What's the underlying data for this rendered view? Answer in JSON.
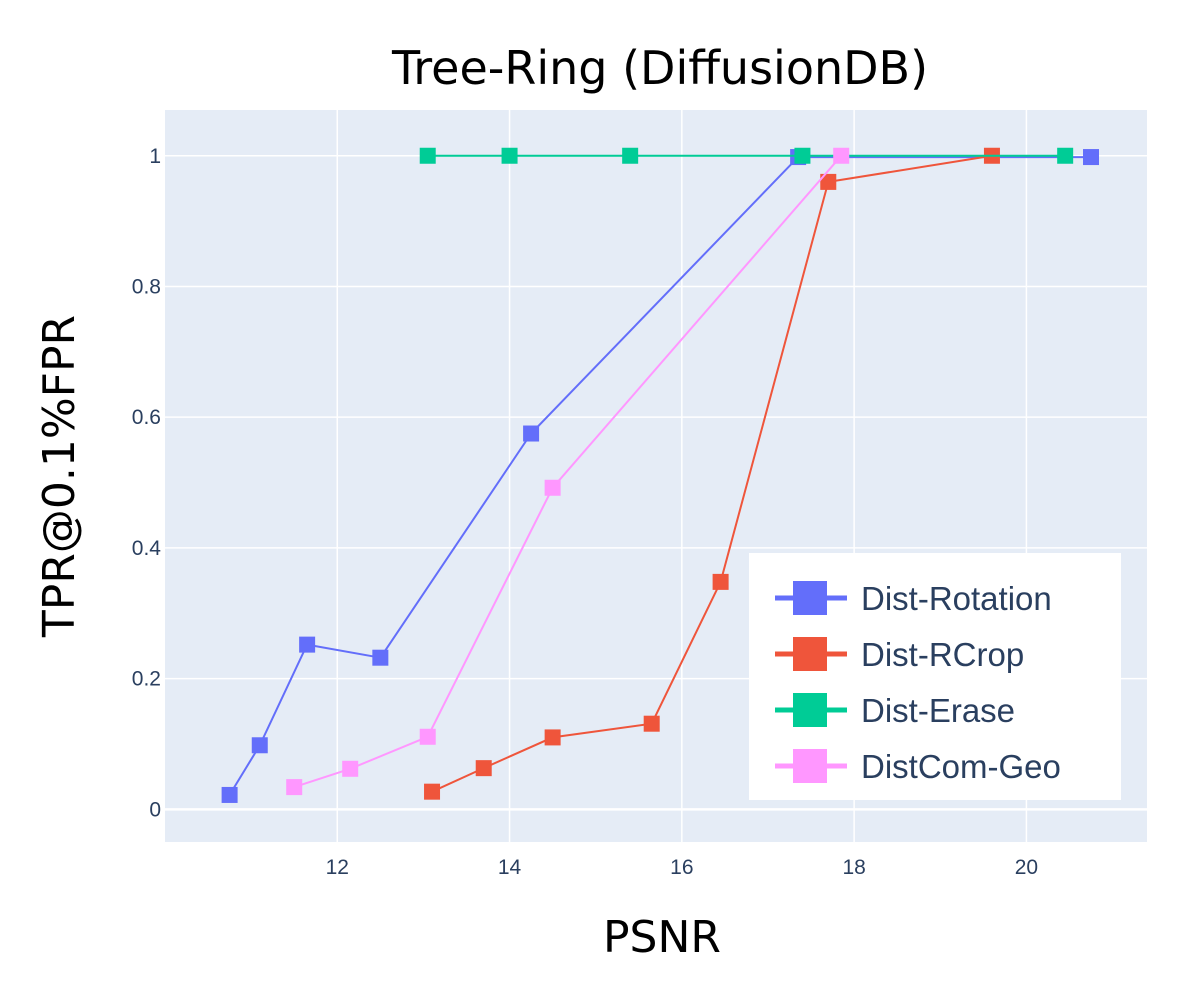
{
  "chart_data": {
    "type": "line",
    "title": "Tree-Ring (DiffusionDB)",
    "xlabel": "PSNR",
    "ylabel": "TPR@0.1%FPR",
    "xlim": [
      10.0,
      21.4
    ],
    "ylim": [
      -0.05,
      1.07
    ],
    "xticks": [
      12,
      14,
      16,
      18,
      20
    ],
    "yticks": [
      0,
      0.2,
      0.4,
      0.6,
      0.8,
      1
    ],
    "ytick_labels": [
      "0",
      "0.2",
      "0.4",
      "0.6",
      "0.8",
      "1"
    ],
    "grid": true,
    "legend_position": "bottom-right",
    "series": [
      {
        "name": "Dist-Rotation",
        "color": "#636efa",
        "x": [
          10.75,
          11.1,
          11.65,
          12.5,
          14.25,
          17.35,
          20.75
        ],
        "y": [
          0.022,
          0.098,
          0.252,
          0.232,
          0.575,
          0.998,
          0.998
        ]
      },
      {
        "name": "Dist-RCrop",
        "color": "#ef553b",
        "x": [
          13.1,
          13.7,
          14.5,
          15.65,
          16.45,
          17.7,
          19.6
        ],
        "y": [
          0.027,
          0.063,
          0.11,
          0.131,
          0.348,
          0.96,
          1.0
        ]
      },
      {
        "name": "Dist-Erase",
        "color": "#00cc96",
        "x": [
          13.05,
          14.0,
          15.4,
          17.4,
          20.45
        ],
        "y": [
          1.0,
          1.0,
          1.0,
          1.0,
          1.0
        ]
      },
      {
        "name": "DistCom-Geo",
        "color": "#ff97ff",
        "x": [
          11.5,
          12.15,
          13.05,
          14.5,
          17.85
        ],
        "y": [
          0.034,
          0.062,
          0.111,
          0.492,
          1.0
        ]
      }
    ]
  }
}
